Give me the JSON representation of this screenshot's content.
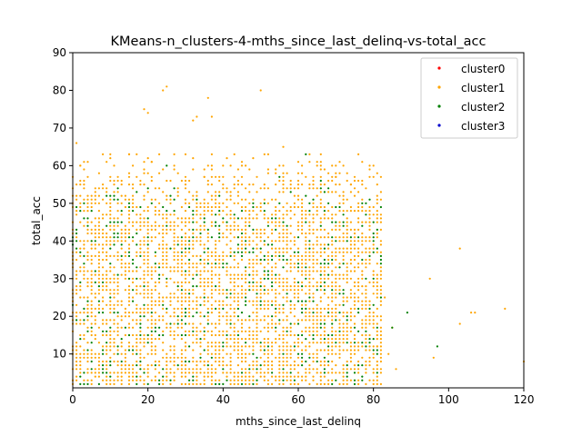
{
  "chart_data": {
    "type": "scatter",
    "title": "KMeans-n_clusters-4-mths_since_last_delinq-vs-total_acc",
    "xlabel": "mths_since_last_delinq",
    "ylabel": "total_acc",
    "xlim": [
      0,
      120
    ],
    "ylim": [
      1,
      90
    ],
    "xticks": [
      0,
      20,
      40,
      60,
      80,
      100,
      120
    ],
    "yticks": [
      10,
      20,
      30,
      40,
      50,
      60,
      70,
      80,
      90
    ],
    "grid": false,
    "legend_position": "top-right",
    "series": [
      {
        "name": "cluster0",
        "color": "#ff0000",
        "points": []
      },
      {
        "name": "cluster1",
        "color": "#ffa500",
        "points": [
          [
            1,
            66
          ],
          [
            2,
            60
          ],
          [
            4,
            57
          ],
          [
            8,
            54
          ],
          [
            10,
            63
          ],
          [
            15,
            63
          ],
          [
            19,
            75
          ],
          [
            20,
            74
          ],
          [
            21,
            61
          ],
          [
            24,
            80
          ],
          [
            25,
            81
          ],
          [
            27,
            60
          ],
          [
            30,
            63
          ],
          [
            32,
            72
          ],
          [
            33,
            73
          ],
          [
            35,
            57
          ],
          [
            36,
            78
          ],
          [
            37,
            73
          ],
          [
            40,
            60
          ],
          [
            43,
            63
          ],
          [
            45,
            60
          ],
          [
            48,
            55
          ],
          [
            50,
            80
          ],
          [
            52,
            63
          ],
          [
            55,
            60
          ],
          [
            56,
            65
          ],
          [
            60,
            58
          ],
          [
            63,
            63
          ],
          [
            66,
            60
          ],
          [
            70,
            57
          ],
          [
            74,
            55
          ],
          [
            78,
            54
          ],
          [
            80,
            60
          ],
          [
            85,
            17
          ],
          [
            86,
            6
          ],
          [
            95,
            30
          ],
          [
            96,
            9
          ],
          [
            103,
            38
          ],
          [
            103,
            18
          ],
          [
            106,
            21
          ],
          [
            107,
            21
          ],
          [
            115,
            22
          ],
          [
            120,
            8
          ],
          [
            82,
            20
          ],
          [
            83,
            25
          ],
          [
            81,
            12
          ],
          [
            84,
            10
          ]
        ]
      },
      {
        "name": "cluster2",
        "color": "#008000",
        "points": [
          [
            89,
            21
          ],
          [
            97,
            12
          ],
          [
            85,
            17
          ],
          [
            60,
            10
          ],
          [
            40,
            2
          ],
          [
            30,
            8
          ],
          [
            20,
            15
          ],
          [
            10,
            25
          ],
          [
            50,
            35
          ],
          [
            70,
            45
          ],
          [
            25,
            60
          ],
          [
            62,
            63
          ],
          [
            66,
            56
          ],
          [
            55,
            57
          ],
          [
            44,
            41
          ],
          [
            35,
            37
          ],
          [
            15,
            30
          ],
          [
            5,
            40
          ]
        ]
      },
      {
        "name": "cluster3",
        "color": "#0000cd",
        "points": []
      }
    ],
    "dense_region": {
      "x_range": [
        0,
        82
      ],
      "y_range": [
        1,
        63
      ],
      "series": [
        "cluster1",
        "cluster2"
      ]
    }
  }
}
